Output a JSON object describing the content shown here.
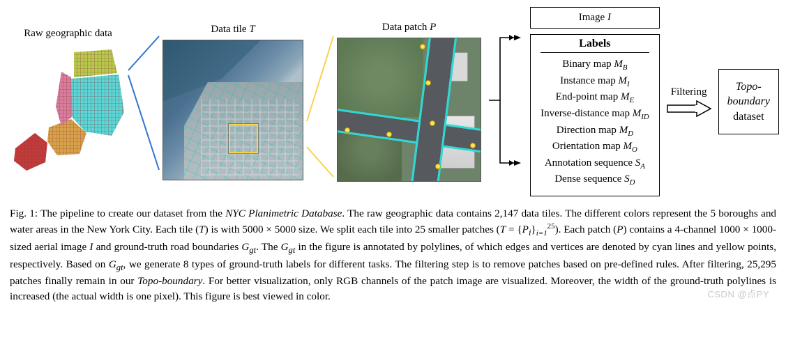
{
  "figure": {
    "raw_title": "Raw geographic data",
    "tile_title_prefix": "Data tile ",
    "tile_var": "T",
    "patch_title_prefix": "Data patch ",
    "patch_var": "P",
    "image_box_prefix": "Image ",
    "image_var": "I",
    "labels_heading": "Labels",
    "labels": [
      {
        "text": "Binary map ",
        "sym": "M",
        "sub": "B"
      },
      {
        "text": "Instance map ",
        "sym": "M",
        "sub": "I"
      },
      {
        "text": "End-point map ",
        "sym": "M",
        "sub": "E"
      },
      {
        "text": "Inverse-distance map ",
        "sym": "M",
        "sub": "ID"
      },
      {
        "text": "Direction map ",
        "sym": "M",
        "sub": "D"
      },
      {
        "text": "Orientation map ",
        "sym": "M",
        "sub": "O"
      },
      {
        "text": "Annotation sequence ",
        "sym": "S",
        "sub": "A"
      },
      {
        "text": "Dense sequence ",
        "sym": "S",
        "sub": "D"
      }
    ],
    "filtering_label": "Filtering",
    "dataset_line1": "Topo-",
    "dataset_line2": "boundary",
    "dataset_line3": "dataset",
    "raw_map_colors": {
      "manhattan": "#d97d9e",
      "bronx": "#b9c94e",
      "brooklyn": "#d8a24a",
      "queens": "#5ad7d7",
      "staten": "#c23b3b",
      "water_overlay": "#3a5f7a",
      "grid": "#8a3a3a"
    },
    "tile_colors": {
      "water": "#2f5770",
      "urban": "#9aa9b0",
      "cyan_roads": "#00c8c8",
      "patch_box": "#f9d34a"
    },
    "patch_colors": {
      "grass": "#6e846a",
      "road": "#565a5e",
      "boundary": "#2fd8d8",
      "vertex": "#ffe35a",
      "roof": "#e7e7e7"
    },
    "connector_color": "#2f74d0",
    "arrow_color": "#000000"
  },
  "caption": {
    "full": "Fig. 1: The pipeline to create our dataset from the NYC Planimetric Database. The raw geographic data contains 2,147 data tiles. The different colors represent the 5 boroughs and water areas in the New York City. Each tile (T) is with 5000 × 5000 size. We split each tile into 25 smaller patches (T = {P_i}_{i=1}^{25}). Each patch (P) contains a 4-channel 1000 × 1000-sized aerial image I and ground-truth road boundaries G_gt. The G_gt in the figure is annotated by polylines, of which edges and vertices are denoted by cyan lines and yellow points, respectively. Based on G_gt, we generate 8 types of ground-truth labels for different tasks. The filtering step is to remove patches based on pre-defined rules. After filtering, 25,295 patches finally remain in our Topo-boundary. For better visualization, only RGB channels of the patch image are visualized. Moreover, the width of the ground-truth polylines is increased (the actual width is one pixel). This figure is best viewed in color."
  },
  "watermark": "CSDN @点PY"
}
